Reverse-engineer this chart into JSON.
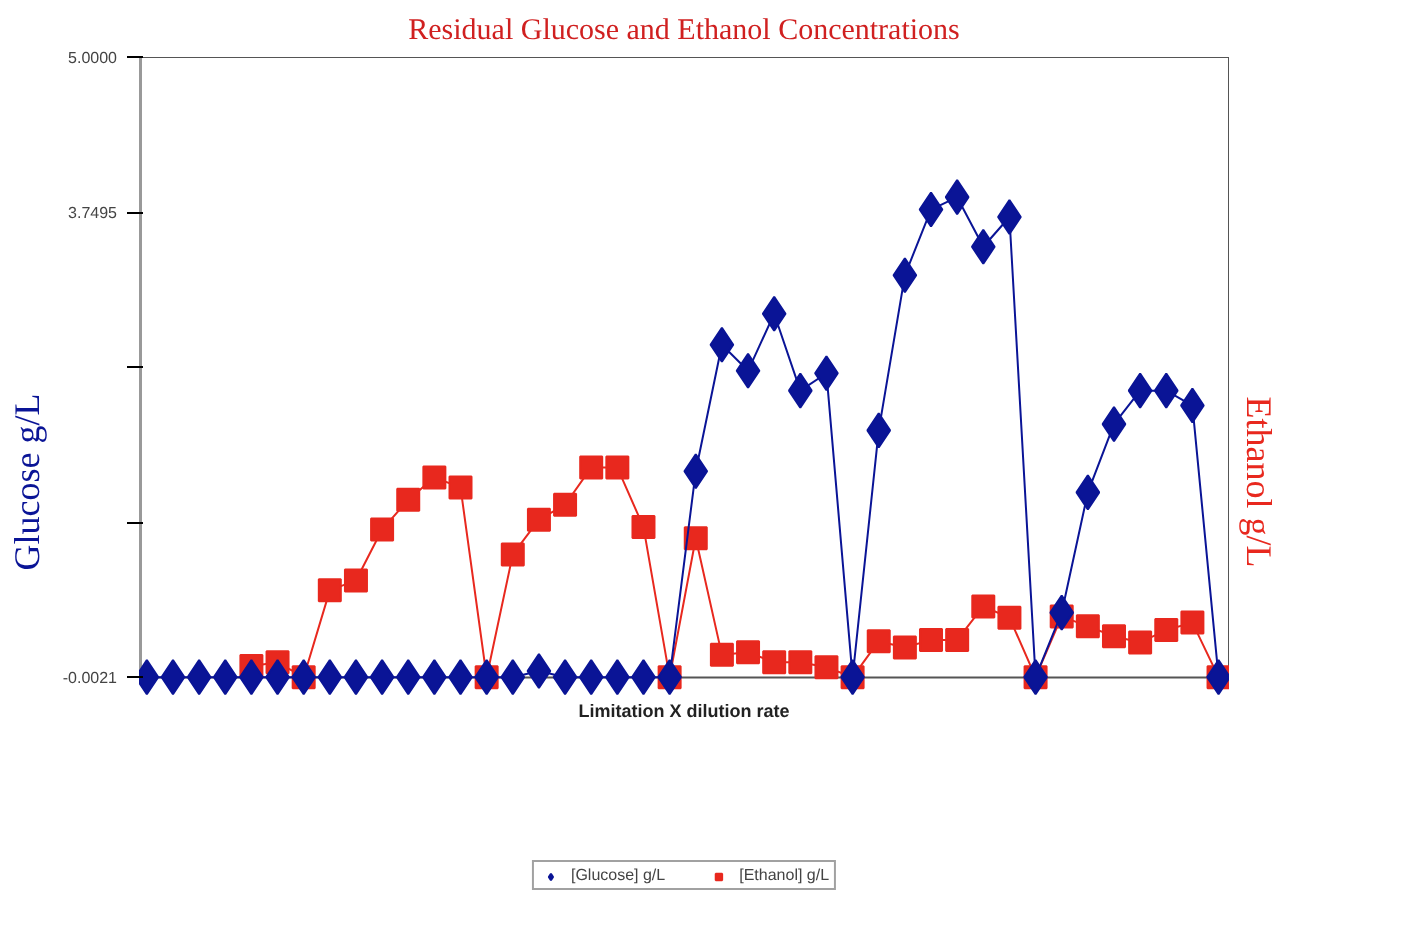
{
  "chart_data": {
    "type": "line",
    "title": "Residual Glucose and Ethanol Concentrations",
    "xlabel": "Limitation X dilution rate",
    "ylabel": "Glucose g/L",
    "y2label": "Ethanol g/L",
    "categories": [
      null,
      null,
      null,
      null,
      null,
      null,
      null,
      null,
      null,
      null,
      null,
      null,
      null,
      null,
      null,
      null,
      null,
      null,
      null,
      null,
      null,
      null,
      null,
      null,
      null,
      null,
      null,
      null,
      null,
      null,
      null,
      null,
      null,
      null,
      null,
      null,
      null,
      null,
      null,
      null,
      null,
      null
    ],
    "series": [
      {
        "name": "[Glucose] g/L",
        "color": "#0a1496",
        "marker": "diamond",
        "values": [
          0,
          0,
          0,
          0,
          0,
          0,
          0,
          0,
          0,
          0,
          0,
          0,
          0,
          0,
          0,
          0.05,
          0,
          0,
          0,
          0,
          0,
          1.66,
          2.68,
          2.47,
          2.93,
          2.31,
          2.45,
          0,
          1.99,
          3.24,
          3.77,
          3.87,
          3.47,
          3.71,
          0,
          0.52,
          1.49,
          2.04,
          2.31,
          2.31,
          2.19,
          0
        ]
      },
      {
        "name": "[Ethanol] g/L",
        "color": "#e8281e",
        "marker": "square",
        "values": [
          null,
          null,
          null,
          null,
          0.09,
          0.12,
          0,
          0.7,
          0.78,
          1.19,
          1.43,
          1.61,
          1.53,
          0,
          0.99,
          1.27,
          1.39,
          1.69,
          1.69,
          1.21,
          0,
          1.12,
          0.18,
          0.2,
          0.12,
          0.12,
          0.08,
          0,
          0.29,
          0.24,
          0.3,
          0.3,
          0.57,
          0.48,
          0,
          0.49,
          0.41,
          0.33,
          0.28,
          0.38,
          0.44,
          0
        ]
      }
    ],
    "ylim": [
      -0.0021,
      5.0
    ],
    "yticks": [
      {
        "value": -0.0021,
        "label": "-0.0021"
      },
      {
        "value": 1.2484,
        "label": null
      },
      {
        "value": 2.499,
        "label": null
      },
      {
        "value": 3.7495,
        "label": "3.7495"
      },
      {
        "value": 5.0,
        "label": "5.0000"
      }
    ],
    "grid": false,
    "legend": "bottom",
    "line_style": "solid"
  }
}
